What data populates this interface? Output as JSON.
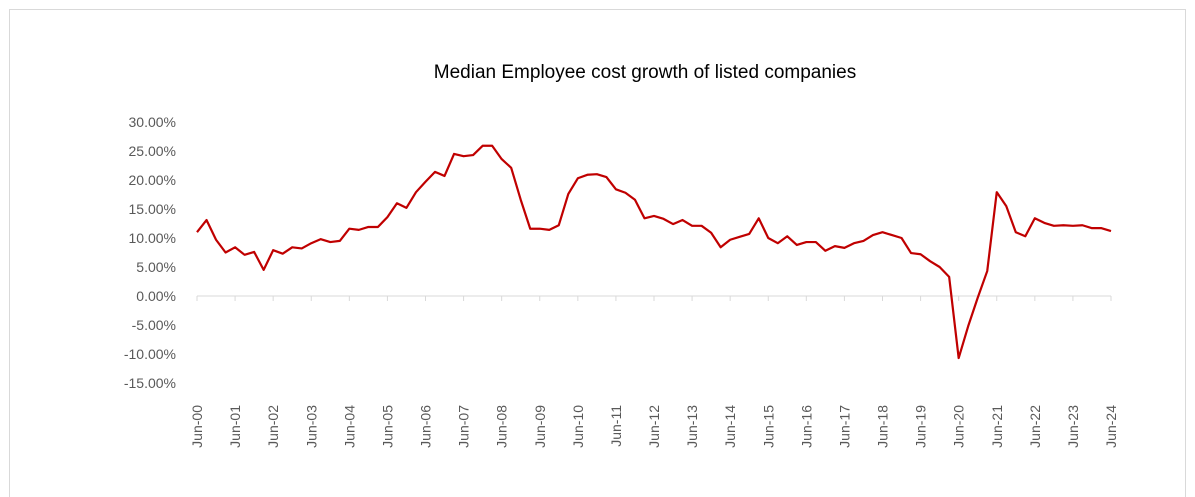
{
  "chart_data": {
    "type": "line",
    "title": "Median Employee cost growth of listed companies",
    "categories": [
      "Jun-00",
      null,
      null,
      null,
      "Jun-01",
      null,
      null,
      null,
      "Jun-02",
      null,
      null,
      null,
      "Jun-03",
      null,
      null,
      null,
      "Jun-04",
      null,
      null,
      null,
      "Jun-05",
      null,
      null,
      null,
      "Jun-06",
      null,
      null,
      null,
      "Jun-07",
      null,
      null,
      null,
      "Jun-08",
      null,
      null,
      null,
      "Jun-09",
      null,
      null,
      null,
      "Jun-10",
      null,
      null,
      null,
      "Jun-11",
      null,
      null,
      null,
      "Jun-12",
      null,
      null,
      null,
      "Jun-13",
      null,
      null,
      null,
      "Jun-14",
      null,
      null,
      null,
      "Jun-15",
      null,
      null,
      null,
      "Jun-16",
      null,
      null,
      null,
      "Jun-17",
      null,
      null,
      null,
      "Jun-18",
      null,
      null,
      null,
      "Jun-19",
      null,
      null,
      null,
      "Jun-20",
      null,
      null,
      null,
      "Jun-21",
      null,
      null,
      null,
      "Jun-22",
      null,
      null,
      null,
      "Jun-23",
      null,
      null,
      null,
      "Jun-24"
    ],
    "series": [
      {
        "color": "#c00000",
        "values": [
          11.0,
          13.1,
          9.7,
          7.5,
          8.4,
          7.1,
          7.6,
          4.5,
          7.9,
          7.3,
          8.4,
          8.2,
          9.1,
          9.8,
          9.3,
          9.5,
          11.6,
          11.4,
          11.9,
          11.9,
          13.6,
          16.0,
          15.2,
          17.9,
          19.7,
          21.4,
          20.7,
          24.5,
          24.1,
          24.3,
          25.9,
          25.9,
          23.6,
          22.1,
          16.6,
          11.6,
          11.6,
          11.4,
          12.2,
          17.6,
          20.3,
          20.9,
          21.0,
          20.5,
          18.4,
          17.8,
          16.6,
          13.4,
          13.8,
          13.3,
          12.4,
          13.1,
          12.1,
          12.1,
          10.9,
          8.4,
          9.7,
          10.2,
          10.7,
          13.4,
          10.0,
          9.1,
          10.3,
          8.8,
          9.3,
          9.3,
          7.8,
          8.6,
          8.3,
          9.1,
          9.5,
          10.5,
          11.0,
          10.5,
          10.0,
          7.4,
          7.2,
          6.0,
          5.0,
          3.3,
          -10.7,
          -5.2,
          -0.3,
          4.3,
          17.9,
          15.5,
          11.0,
          10.3,
          13.4,
          12.6,
          12.1,
          12.2,
          12.1,
          12.2,
          11.7,
          11.7,
          11.2
        ]
      }
    ],
    "ylim": [
      -15,
      30
    ],
    "yticks": [
      {
        "value": 30,
        "label": "30.00%"
      },
      {
        "value": 25,
        "label": "25.00%"
      },
      {
        "value": 20,
        "label": "20.00%"
      },
      {
        "value": 15,
        "label": "15.00%"
      },
      {
        "value": 10,
        "label": "10.00%"
      },
      {
        "value": 5,
        "label": "5.00%"
      },
      {
        "value": 0,
        "label": "0.00%"
      },
      {
        "value": -5,
        "label": "-5.00%"
      },
      {
        "value": -10,
        "label": "-10.00%"
      },
      {
        "value": -15,
        "label": "-15.00%"
      }
    ]
  }
}
